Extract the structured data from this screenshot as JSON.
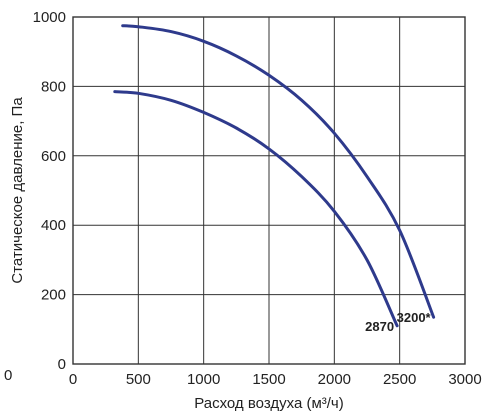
{
  "chart_data": {
    "type": "line",
    "xlabel": "Расход воздуха (м³/ч)",
    "ylabel": "Статическое давление, Па",
    "xlim": [
      0,
      3000
    ],
    "ylim": [
      0,
      1000
    ],
    "x_ticks": [
      "0",
      "500",
      "1000",
      "1500",
      "2000",
      "2500",
      "3000"
    ],
    "y_ticks": [
      "0",
      "200",
      "400",
      "600",
      "800",
      "1000"
    ],
    "outer_tick_label": "0",
    "grid": true,
    "line_color": "#2e3a8c",
    "series": [
      {
        "name": "2870",
        "x": [
          320,
          500,
          750,
          1000,
          1250,
          1500,
          1750,
          2000,
          2250,
          2480
        ],
        "y": [
          785,
          780,
          760,
          725,
          680,
          620,
          540,
          440,
          300,
          110
        ]
      },
      {
        "name": "3200*",
        "x": [
          380,
          500,
          750,
          1000,
          1250,
          1500,
          1750,
          2000,
          2250,
          2500,
          2760
        ],
        "y": [
          975,
          972,
          958,
          930,
          888,
          832,
          760,
          665,
          540,
          385,
          135
        ]
      }
    ]
  }
}
